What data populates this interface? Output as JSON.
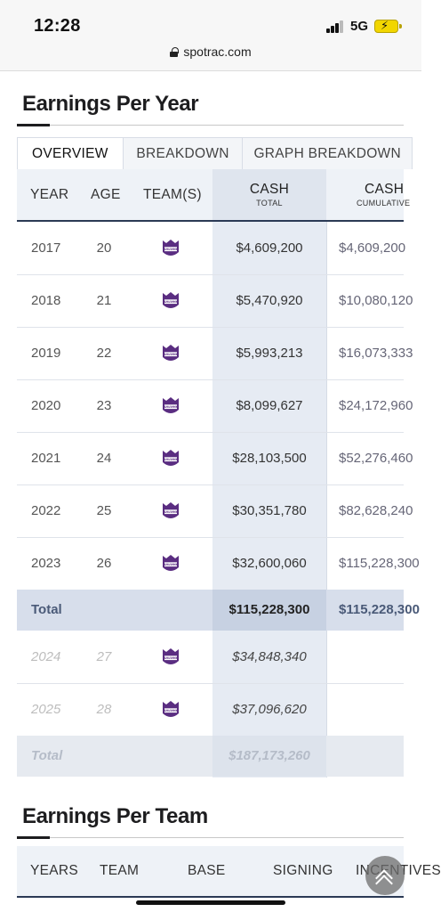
{
  "status_bar": {
    "time": "12:28",
    "network": "5G",
    "battery": "charging"
  },
  "browser": {
    "url": "spotrac.com"
  },
  "earnings_per_year": {
    "title": "Earnings Per Year",
    "tabs": [
      {
        "label": "OVERVIEW",
        "active": true
      },
      {
        "label": "BREAKDOWN",
        "active": false
      },
      {
        "label": "GRAPH BREAKDOWN",
        "active": false
      }
    ],
    "columns": {
      "year": "YEAR",
      "age": "AGE",
      "teams": "TEAM(S)",
      "cash": "CASH",
      "cash_sub": "TOTAL",
      "cumulative": "CASH",
      "cumulative_sub": "CUMULATIVE"
    },
    "rows": [
      {
        "year": "2017",
        "age": "20",
        "team": "kings-icon",
        "cash": "$4,609,200",
        "cumulative": "$4,609,200"
      },
      {
        "year": "2018",
        "age": "21",
        "team": "kings-icon",
        "cash": "$5,470,920",
        "cumulative": "$10,080,120"
      },
      {
        "year": "2019",
        "age": "22",
        "team": "kings-icon",
        "cash": "$5,993,213",
        "cumulative": "$16,073,333"
      },
      {
        "year": "2020",
        "age": "23",
        "team": "kings-icon",
        "cash": "$8,099,627",
        "cumulative": "$24,172,960"
      },
      {
        "year": "2021",
        "age": "24",
        "team": "kings-icon",
        "cash": "$28,103,500",
        "cumulative": "$52,276,460"
      },
      {
        "year": "2022",
        "age": "25",
        "team": "kings-icon",
        "cash": "$30,351,780",
        "cumulative": "$82,628,240"
      },
      {
        "year": "2023",
        "age": "26",
        "team": "kings-icon",
        "cash": "$32,600,060",
        "cumulative": "$115,228,300"
      }
    ],
    "total": {
      "label": "Total",
      "cash": "$115,228,300",
      "cumulative": "$115,228,300"
    },
    "future_rows": [
      {
        "year": "2024",
        "age": "27",
        "team": "kings-icon",
        "cash": "$34,848,340"
      },
      {
        "year": "2025",
        "age": "28",
        "team": "kings-icon",
        "cash": "$37,096,620"
      }
    ],
    "future_total": {
      "label": "Total",
      "cash": "$187,173,260"
    }
  },
  "earnings_per_team": {
    "title": "Earnings Per Team",
    "columns": [
      "YEARS",
      "TEAM",
      "BASE",
      "SIGNING",
      "INCENTIVES"
    ]
  },
  "colors": {
    "accent_navy": "#2b3a55",
    "kings_purple": "#5a2d81",
    "cash_highlight": "#e6ebf3"
  }
}
